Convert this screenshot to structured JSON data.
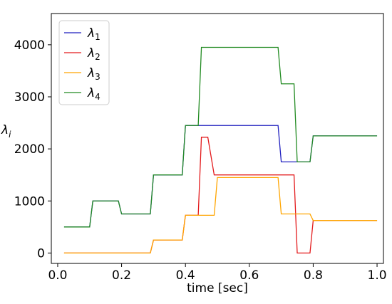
{
  "chart_data": {
    "type": "line",
    "xlabel": "time [sec]",
    "ylabel": "λ",
    "ylabel_sub": "i",
    "xlim": [
      -0.02,
      1.02
    ],
    "ylim": [
      -200,
      4600
    ],
    "xticks": [
      0.0,
      0.2,
      0.4,
      0.6,
      0.8,
      1.0
    ],
    "xtick_labels": [
      "0.0",
      "0.2",
      "0.4",
      "0.6",
      "0.8",
      "1.0"
    ],
    "yticks": [
      0,
      1000,
      2000,
      3000,
      4000
    ],
    "ytick_labels": [
      "0",
      "1000",
      "2000",
      "3000",
      "4000"
    ],
    "grid": false,
    "legend_position": "top-left",
    "series": [
      {
        "name": "λ",
        "sub": "1",
        "color": "#1f1fbf",
        "x": [
          0.02,
          0.1,
          0.11,
          0.19,
          0.2,
          0.29,
          0.3,
          0.39,
          0.4,
          0.44,
          0.45,
          0.49,
          0.5,
          0.69,
          0.7,
          0.74,
          0.75,
          0.79,
          0.8,
          1.0
        ],
        "y": [
          500,
          500,
          1000,
          1000,
          750,
          750,
          1500,
          1500,
          2450,
          2450,
          2450,
          2450,
          2450,
          2450,
          1750,
          1750,
          1750,
          1750,
          2250,
          2250
        ]
      },
      {
        "name": "λ",
        "sub": "2",
        "color": "#e31a1c",
        "x": [
          0.02,
          0.29,
          0.3,
          0.39,
          0.4,
          0.44,
          0.45,
          0.47,
          0.49,
          0.5,
          0.74,
          0.75,
          0.79,
          0.8,
          1.0
        ],
        "y": [
          0,
          0,
          250,
          250,
          725,
          725,
          2225,
          2225,
          1500,
          1500,
          1500,
          0,
          0,
          625,
          625
        ]
      },
      {
        "name": "λ",
        "sub": "3",
        "color": "#ffa500",
        "x": [
          0.02,
          0.29,
          0.3,
          0.39,
          0.4,
          0.49,
          0.5,
          0.69,
          0.7,
          0.79,
          0.8,
          1.0
        ],
        "y": [
          0,
          0,
          250,
          250,
          725,
          725,
          1450,
          1450,
          750,
          750,
          625,
          625
        ]
      },
      {
        "name": "λ",
        "sub": "4",
        "color": "#228b22",
        "x": [
          0.02,
          0.1,
          0.11,
          0.19,
          0.2,
          0.29,
          0.3,
          0.39,
          0.4,
          0.44,
          0.45,
          0.69,
          0.7,
          0.74,
          0.75,
          0.79,
          0.8,
          1.0
        ],
        "y": [
          500,
          500,
          1000,
          1000,
          750,
          750,
          1500,
          1500,
          2450,
          2450,
          3950,
          3950,
          3250,
          3250,
          1750,
          1750,
          2250,
          2250
        ]
      }
    ]
  }
}
